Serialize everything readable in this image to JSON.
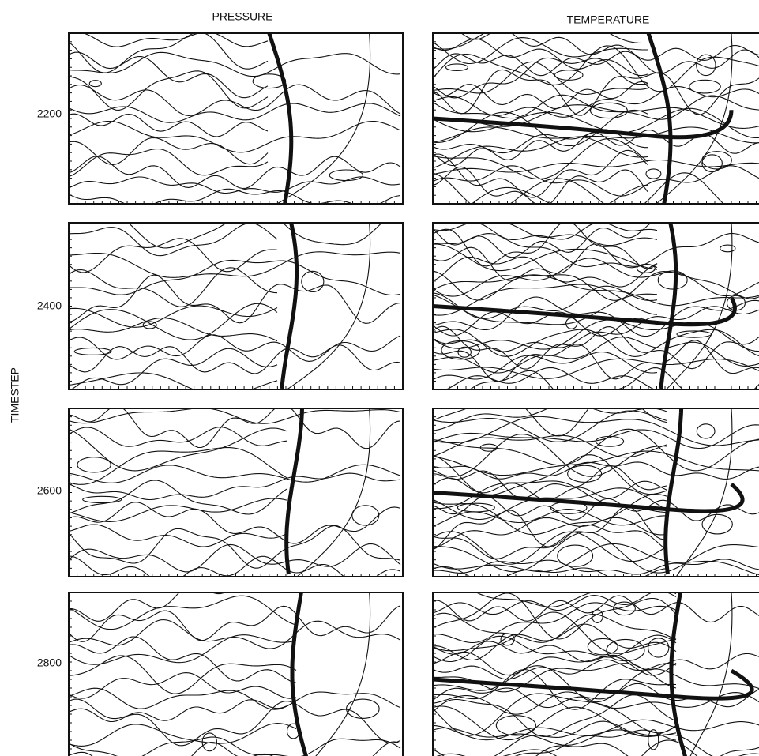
{
  "columns": [
    "PRESSURE",
    "TEMPERATURE"
  ],
  "axis_label": "TIMESTEP",
  "rows": [
    "2200",
    "2400",
    "2600",
    "2800"
  ]
}
